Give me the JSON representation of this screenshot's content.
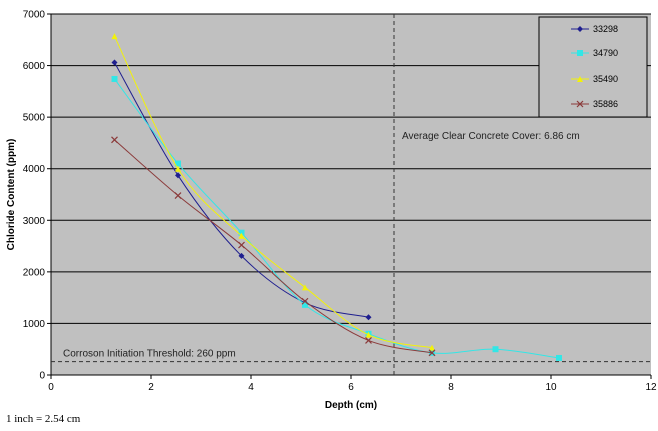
{
  "chart_data": {
    "type": "line",
    "xlabel": "Depth (cm)",
    "ylabel": "Chloride Content (ppm)",
    "xlim": [
      0,
      12
    ],
    "ylim": [
      0,
      7000
    ],
    "x_ticks": [
      0,
      2,
      4,
      6,
      8,
      10,
      12
    ],
    "y_ticks": [
      0,
      1000,
      2000,
      3000,
      4000,
      5000,
      6000,
      7000
    ],
    "grid": "horizontal",
    "legend_position": "top-right",
    "series": [
      {
        "name": "33298",
        "color": "#1f1f8f",
        "marker": "diamond",
        "x": [
          1.27,
          2.54,
          3.81,
          5.08,
          6.35
        ],
        "y": [
          6060,
          3870,
          2310,
          1400,
          1120
        ]
      },
      {
        "name": "34790",
        "color": "#33e6e6",
        "marker": "square",
        "x": [
          1.27,
          2.54,
          3.81,
          5.08,
          6.35,
          7.62,
          8.89,
          10.16
        ],
        "y": [
          5740,
          4100,
          2760,
          1360,
          800,
          430,
          500,
          330
        ]
      },
      {
        "name": "35490",
        "color": "#f2f20a",
        "marker": "triangle",
        "x": [
          1.27,
          2.54,
          3.81,
          5.08,
          6.35,
          7.62
        ],
        "y": [
          6570,
          4000,
          2700,
          1700,
          780,
          530
        ]
      },
      {
        "name": "35886",
        "color": "#8b3a3a",
        "marker": "x",
        "x": [
          1.27,
          2.54,
          3.81,
          5.08,
          6.35,
          7.62
        ],
        "y": [
          4560,
          3480,
          2520,
          1430,
          670,
          430
        ]
      }
    ],
    "annotations": {
      "cover_line": {
        "x": 6.86,
        "label": "Average Clear Concrete Cover: 6.86 cm"
      },
      "threshold_line": {
        "y": 260,
        "label": "Corroson Initiation Threshold: 260 ppm"
      }
    }
  },
  "footnote": "1 inch = 2.54 cm",
  "colors": {
    "plot_background": "#c0c0c0",
    "gridline": "#000000"
  }
}
